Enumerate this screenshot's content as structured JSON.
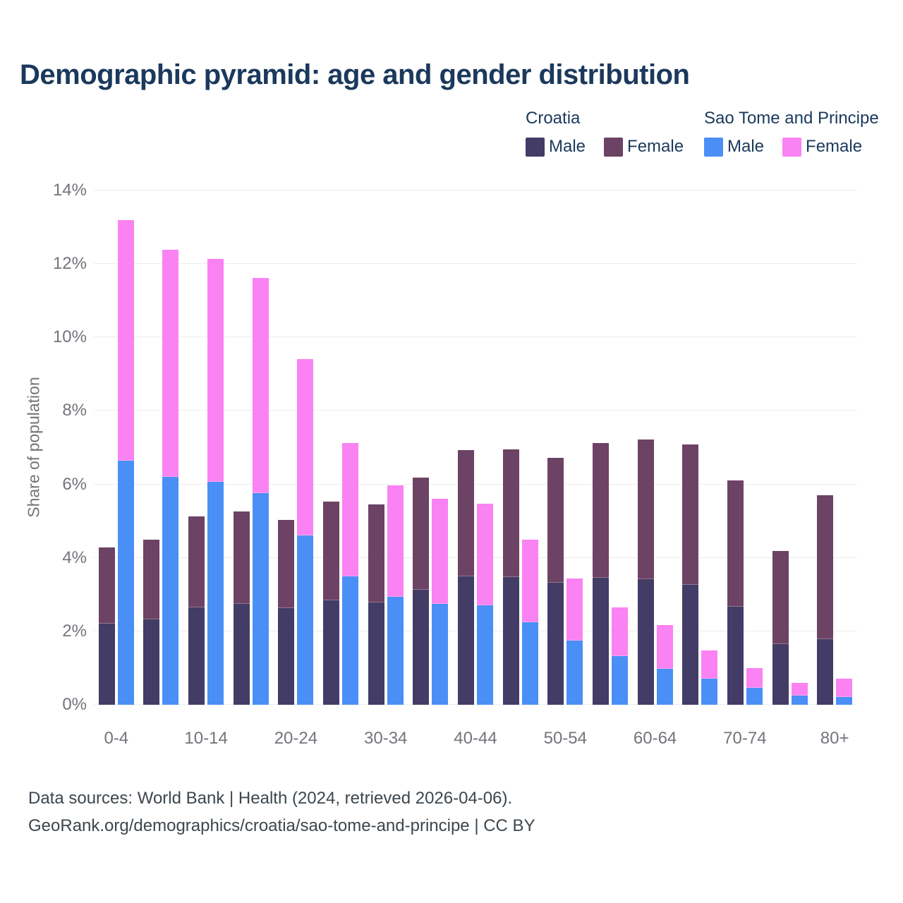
{
  "title": "Demographic pyramid: age and gender distribution",
  "legend": {
    "groups": [
      {
        "name": "Croatia",
        "items": [
          {
            "label": "Male",
            "color": "#423c66"
          },
          {
            "label": "Female",
            "color": "#6c4364"
          }
        ]
      },
      {
        "name": "Sao Tome and Principe",
        "items": [
          {
            "label": "Male",
            "color": "#4a8ff5"
          },
          {
            "label": "Female",
            "color": "#fb82f2"
          }
        ]
      }
    ]
  },
  "chart_data": {
    "type": "bar",
    "stacked": true,
    "title": "Demographic pyramid: age and gender distribution",
    "xlabel": "",
    "ylabel": "Share of population",
    "ylim": [
      0,
      14
    ],
    "grid": "horizontal-only",
    "legend_position": "top-right",
    "y_ticks": [
      "0%",
      "2%",
      "4%",
      "6%",
      "8%",
      "10%",
      "12%",
      "14%"
    ],
    "categories": [
      "0-4",
      "5-9",
      "10-14",
      "15-19",
      "20-24",
      "25-29",
      "30-34",
      "35-39",
      "40-44",
      "45-49",
      "50-54",
      "55-59",
      "60-64",
      "65-69",
      "70-74",
      "75-79",
      "80+"
    ],
    "x_tick_labels_shown": [
      "0-4",
      "10-14",
      "20-24",
      "30-34",
      "40-44",
      "50-54",
      "60-64",
      "70-74",
      "80+"
    ],
    "unit": "% of population",
    "series": [
      {
        "name": "Croatia Male",
        "color": "#423c66",
        "stack": "croatia",
        "values": [
          2.2,
          2.33,
          2.66,
          2.74,
          2.64,
          2.85,
          2.79,
          3.13,
          3.5,
          3.48,
          3.33,
          3.46,
          3.42,
          3.27,
          2.67,
          1.66,
          1.79
        ]
      },
      {
        "name": "Croatia Female",
        "color": "#6c4364",
        "stack": "croatia",
        "values": [
          2.09,
          2.17,
          2.47,
          2.53,
          2.4,
          2.69,
          2.67,
          3.06,
          3.44,
          3.48,
          3.4,
          3.66,
          3.81,
          3.81,
          3.43,
          2.52,
          3.91
        ]
      },
      {
        "name": "Sao Tome and Principe Male",
        "color": "#4a8ff5",
        "stack": "sao-tome",
        "values": [
          6.65,
          6.2,
          6.06,
          5.76,
          4.6,
          3.5,
          2.94,
          2.75,
          2.71,
          2.25,
          1.75,
          1.33,
          0.98,
          0.71,
          0.46,
          0.25,
          0.22
        ]
      },
      {
        "name": "Sao Tome and Principe Female",
        "color": "#fb82f2",
        "stack": "sao-tome",
        "values": [
          6.54,
          6.18,
          6.07,
          5.85,
          4.82,
          3.63,
          3.04,
          2.85,
          2.77,
          2.25,
          1.69,
          1.32,
          1.19,
          0.77,
          0.54,
          0.35,
          0.49
        ]
      }
    ]
  },
  "footer": {
    "line1": "Data sources: World Bank | Health (2024, retrieved 2026-04-06).",
    "line2": "GeoRank.org/demographics/croatia/sao-tome-and-principe | CC BY"
  }
}
